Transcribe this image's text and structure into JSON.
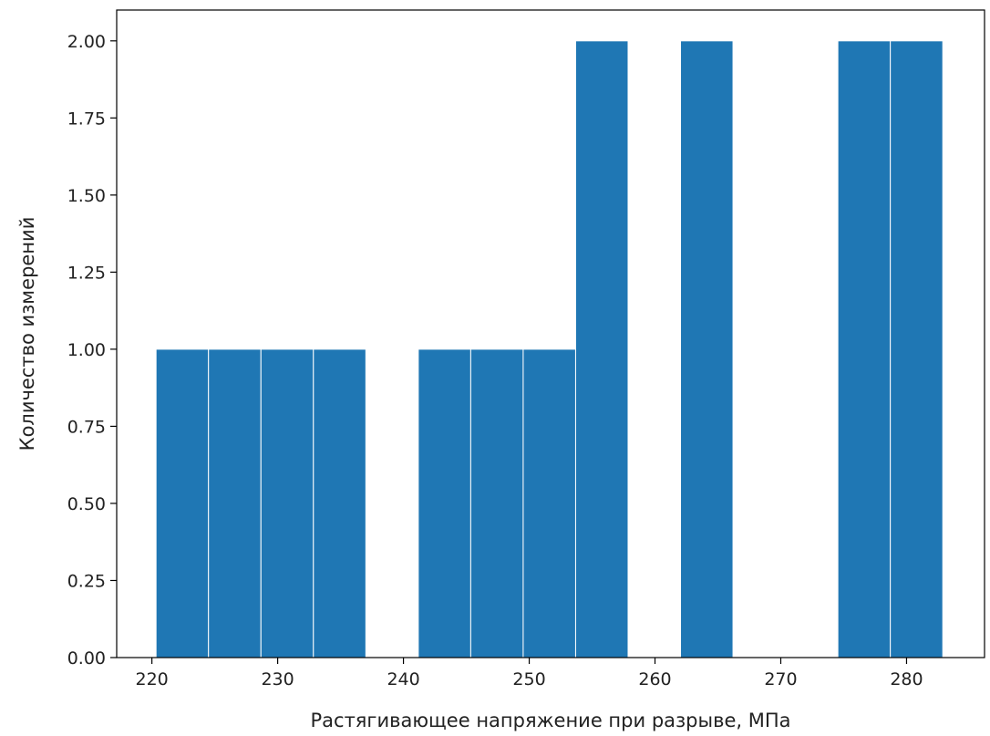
{
  "chart_data": {
    "type": "bar",
    "title": "",
    "xlabel": "Растягивающее напряжение при разрыве, МПа",
    "ylabel": "Количество измерений",
    "xlim": [
      217.2,
      286.2
    ],
    "ylim": [
      0,
      2.1
    ],
    "grid": false,
    "bin_width": 4.17,
    "bins": [
      {
        "x0": 220.33,
        "x1": 224.5,
        "count": 1
      },
      {
        "x0": 224.5,
        "x1": 228.67,
        "count": 1
      },
      {
        "x0": 228.67,
        "x1": 232.84,
        "count": 1
      },
      {
        "x0": 232.84,
        "x1": 237.01,
        "count": 1
      },
      {
        "x0": 237.01,
        "x1": 241.18,
        "count": 0
      },
      {
        "x0": 241.18,
        "x1": 245.35,
        "count": 1
      },
      {
        "x0": 245.35,
        "x1": 249.52,
        "count": 1
      },
      {
        "x0": 249.52,
        "x1": 253.69,
        "count": 1
      },
      {
        "x0": 253.69,
        "x1": 257.86,
        "count": 2
      },
      {
        "x0": 257.86,
        "x1": 262.03,
        "count": 0
      },
      {
        "x0": 262.03,
        "x1": 266.2,
        "count": 2
      },
      {
        "x0": 266.2,
        "x1": 270.37,
        "count": 0
      },
      {
        "x0": 270.37,
        "x1": 274.54,
        "count": 0
      },
      {
        "x0": 274.54,
        "x1": 278.71,
        "count": 2
      },
      {
        "x0": 278.71,
        "x1": 282.88,
        "count": 2
      }
    ],
    "x_ticks": [
      "220",
      "230",
      "240",
      "250",
      "260",
      "270",
      "280"
    ],
    "y_ticks": [
      "0.00",
      "0.25",
      "0.50",
      "0.75",
      "1.00",
      "1.25",
      "1.50",
      "1.75",
      "2.00"
    ],
    "bar_color": "#1f77b4",
    "edge_color": "#ffffff"
  }
}
